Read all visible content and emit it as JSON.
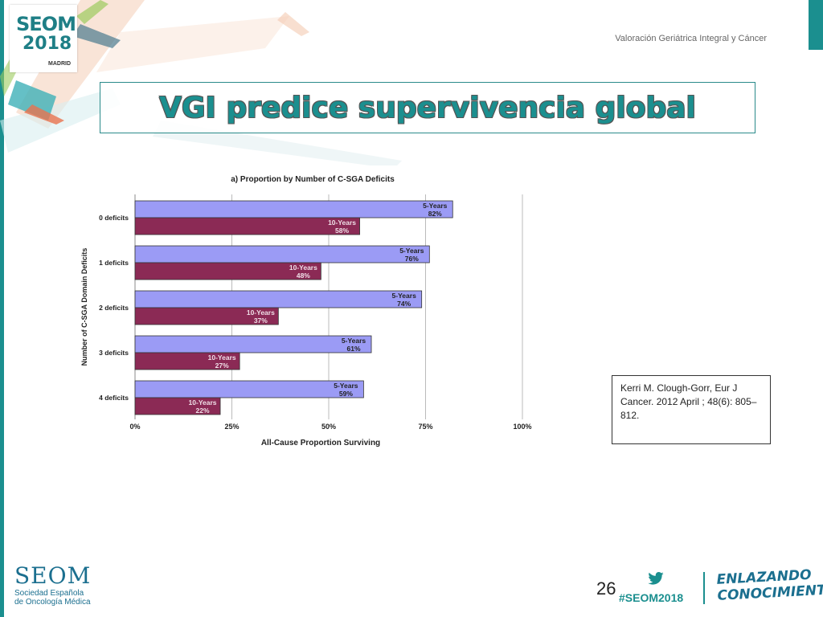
{
  "header": {
    "logo_main": "SEOM",
    "logo_year": "2018",
    "logo_city": "MADRID",
    "top_right": "Valoración Geriátrica Integral y Cáncer",
    "title": "VGI predice supervivencia global"
  },
  "citation": "Kerri M. Clough-Gorr, Eur J Cancer. 2012 April ; 48(6): 805–812.",
  "footer": {
    "seom": "SEOM",
    "seom_sub1": "Sociedad Española",
    "seom_sub2": "de Oncología Médica",
    "page_number": "26",
    "hashtag": "#SEOM2018",
    "slogan_line1": "ENLAZANDO",
    "slogan_line2": "CONOCIMIENTO"
  },
  "colors": {
    "teal": "#1b8f8f",
    "five_years_bar": "#9b9bf5",
    "ten_years_bar": "#8b2a55"
  },
  "chart_data": {
    "type": "bar",
    "orientation": "horizontal",
    "title": "a) Proportion by Number of C-SGA Deficits",
    "xlabel": "All-Cause Proportion Surviving",
    "ylabel": "Number of C-SGA Domain Deficits",
    "categories": [
      "0 deficits",
      "1 deficits",
      "2 deficits",
      "3 deficits",
      "4 deficits"
    ],
    "x_ticks": [
      "0%",
      "25%",
      "50%",
      "75%",
      "100%"
    ],
    "xlim": [
      0,
      100
    ],
    "series": [
      {
        "name": "5-Years",
        "values": [
          82,
          76,
          74,
          61,
          59
        ],
        "labels": [
          "82%",
          "76%",
          "74%",
          "61%",
          "59%"
        ],
        "color": "#9b9bf5"
      },
      {
        "name": "10-Years",
        "values": [
          58,
          48,
          37,
          27,
          22
        ],
        "labels": [
          "58%",
          "48%",
          "37%",
          "27%",
          "22%"
        ],
        "color": "#8b2a55"
      }
    ],
    "grid": true
  }
}
